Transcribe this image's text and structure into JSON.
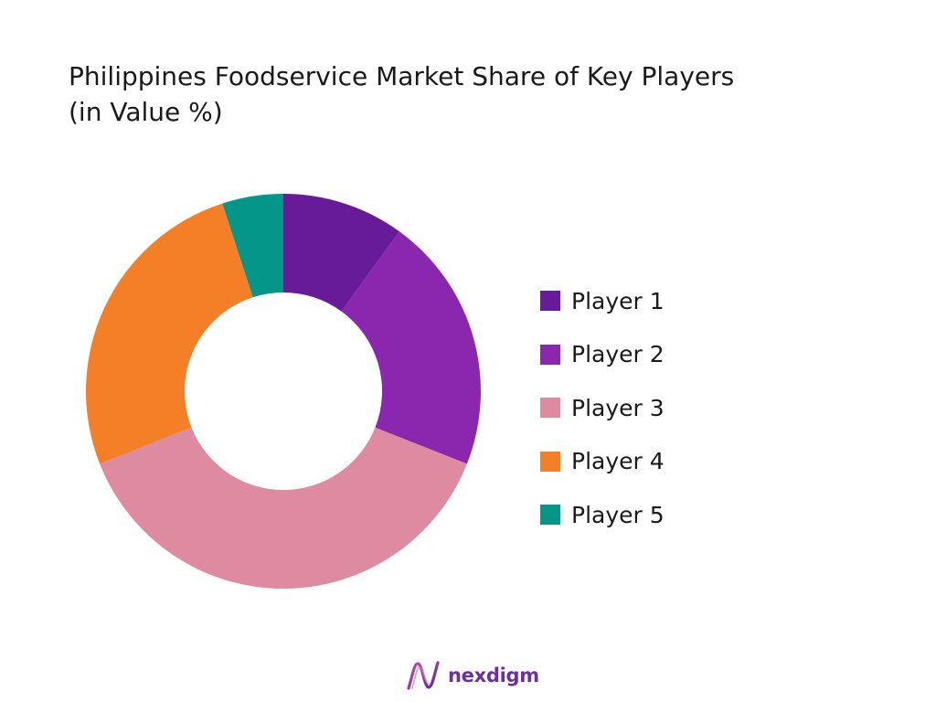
{
  "title": {
    "line1": "Philippines Foodservice Market Share of Key Players",
    "line2": "(in Value %)"
  },
  "chart_data": {
    "type": "pie",
    "style": "donut",
    "categories": [
      "Player 1",
      "Player 2",
      "Player 3",
      "Player 4",
      "Player 5"
    ],
    "values": [
      10,
      21,
      38,
      26,
      5
    ],
    "colors": [
      "#671b98",
      "#8b27ae",
      "#de8aa0",
      "#f47f27",
      "#049789"
    ],
    "legend_placement": "right",
    "start_angle": "top",
    "direction": "clockwise"
  },
  "legend": {
    "items": [
      "Player 1",
      "Player 2",
      "Player 3",
      "Player 4",
      "Player 5"
    ]
  },
  "brand": {
    "name": "nexdigm",
    "color": "#6b2fa3"
  }
}
